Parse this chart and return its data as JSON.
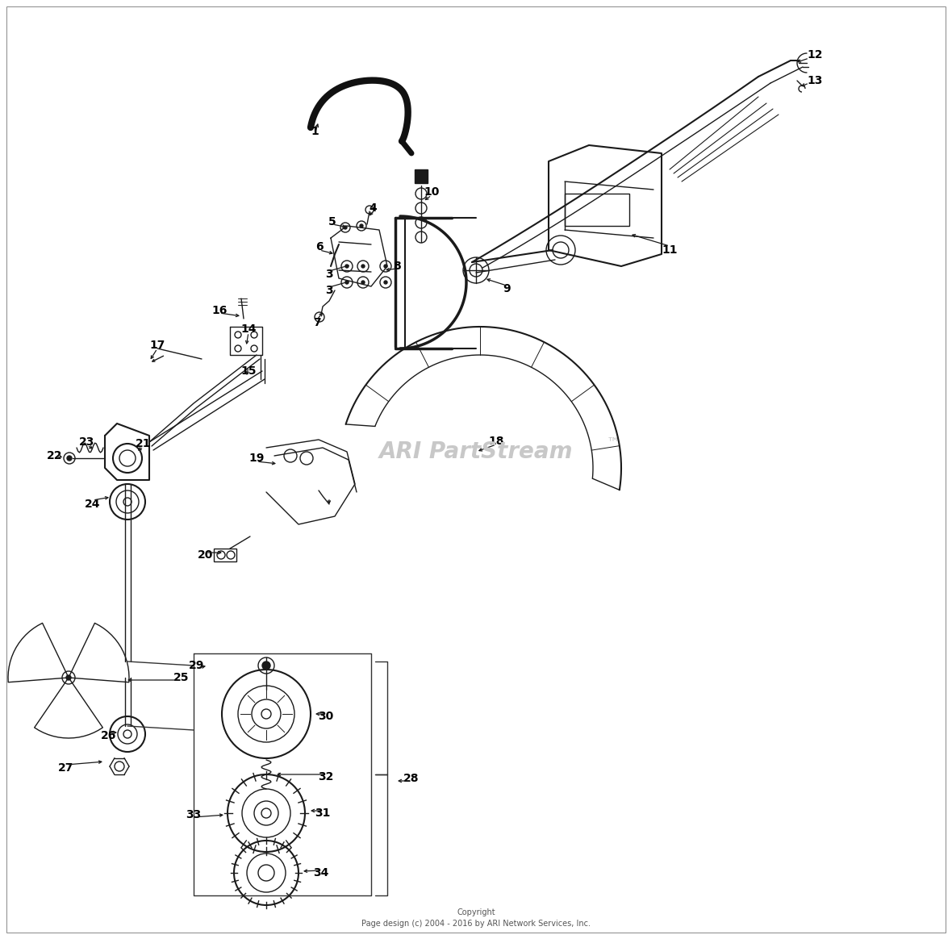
{
  "background_color": "#ffffff",
  "watermark_text": "ARI PartStream",
  "watermark_tm": "™",
  "watermark_color": "#c8c8c8",
  "copyright_text": "Copyright\nPage design (c) 2004 - 2016 by ARI Network Services, Inc.",
  "line_color": "#1a1a1a",
  "label_color": "#000000",
  "figsize": [
    11.8,
    11.64
  ],
  "dpi": 100,
  "border_color": "#aaaaaa"
}
